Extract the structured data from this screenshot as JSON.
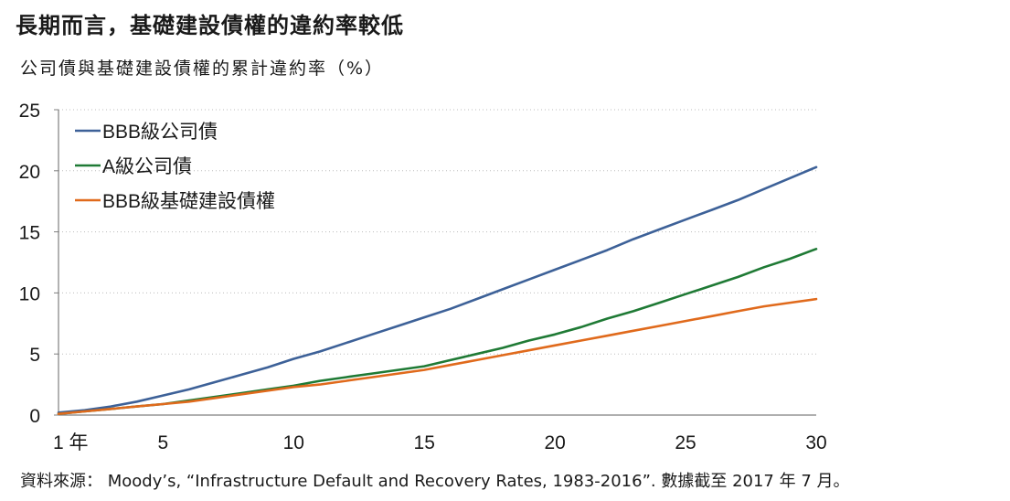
{
  "title": "長期而言，基礎建設債權的違約率較低",
  "subtitle": "公司債與基礎建設債權的累計違約率（%）",
  "source": "資料來源： Moody’s, “Infrastructure Default and Recovery Rates, 1983-2016”. 數據截至 2017 年 7 月。",
  "chart_data": {
    "type": "line",
    "title": "公司債與基礎建設債權的累計違約率（%）",
    "xlabel": "",
    "ylabel": "",
    "xlim": [
      1,
      30
    ],
    "ylim": [
      0,
      25
    ],
    "x_ticks": [
      {
        "value": 1,
        "label": "1 年"
      },
      {
        "value": 5,
        "label": "5"
      },
      {
        "value": 10,
        "label": "10"
      },
      {
        "value": 15,
        "label": "15"
      },
      {
        "value": 20,
        "label": "20"
      },
      {
        "value": 25,
        "label": "25"
      },
      {
        "value": 30,
        "label": "30"
      }
    ],
    "y_ticks": [
      0,
      5,
      10,
      15,
      20,
      25
    ],
    "grid": "horizontal dotted",
    "legend_position": "top-left",
    "x": [
      1,
      2,
      3,
      4,
      5,
      6,
      7,
      8,
      9,
      10,
      11,
      12,
      13,
      14,
      15,
      16,
      17,
      18,
      19,
      20,
      21,
      22,
      23,
      24,
      25,
      26,
      27,
      28,
      29,
      30
    ],
    "series": [
      {
        "name": "BBB級公司債",
        "color": "#3d6198",
        "values": [
          0.2,
          0.4,
          0.7,
          1.1,
          1.6,
          2.1,
          2.7,
          3.3,
          3.9,
          4.6,
          5.2,
          5.9,
          6.6,
          7.3,
          8.0,
          8.7,
          9.5,
          10.3,
          11.1,
          11.9,
          12.7,
          13.5,
          14.4,
          15.2,
          16.0,
          16.8,
          17.6,
          18.5,
          19.4,
          20.3
        ]
      },
      {
        "name": "A級公司債",
        "color": "#1f7a35",
        "values": [
          0.1,
          0.3,
          0.5,
          0.7,
          0.9,
          1.2,
          1.5,
          1.8,
          2.1,
          2.4,
          2.8,
          3.1,
          3.4,
          3.7,
          4.0,
          4.5,
          5.0,
          5.5,
          6.1,
          6.6,
          7.2,
          7.9,
          8.5,
          9.2,
          9.9,
          10.6,
          11.3,
          12.1,
          12.8,
          13.6
        ]
      },
      {
        "name": "BBB級基礎建設債權",
        "color": "#e06a1c",
        "values": [
          0.1,
          0.3,
          0.5,
          0.7,
          0.9,
          1.1,
          1.4,
          1.7,
          2.0,
          2.3,
          2.5,
          2.8,
          3.1,
          3.4,
          3.7,
          4.1,
          4.5,
          4.9,
          5.3,
          5.7,
          6.1,
          6.5,
          6.9,
          7.3,
          7.7,
          8.1,
          8.5,
          8.9,
          9.2,
          9.5
        ]
      }
    ]
  }
}
